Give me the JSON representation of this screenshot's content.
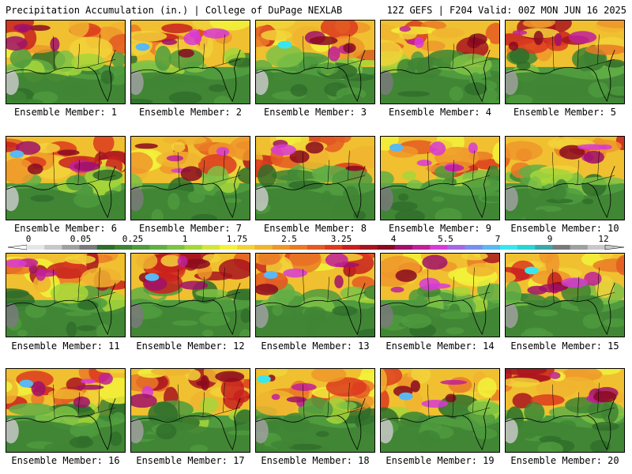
{
  "header": {
    "left": "Precipitation Accumulation (in.) | College of DuPage NEXLAB",
    "right": "12Z GEFS | F204 Valid: 00Z MON JUN 16 2025"
  },
  "members": [
    {
      "label": "Ensemble Member: 1"
    },
    {
      "label": "Ensemble Member: 2"
    },
    {
      "label": "Ensemble Member: 3"
    },
    {
      "label": "Ensemble Member: 4"
    },
    {
      "label": "Ensemble Member: 5"
    },
    {
      "label": "Ensemble Member: 6"
    },
    {
      "label": "Ensemble Member: 7"
    },
    {
      "label": "Ensemble Member: 8"
    },
    {
      "label": "Ensemble Member: 9"
    },
    {
      "label": "Ensemble Member: 10"
    },
    {
      "label": "Ensemble Member: 11"
    },
    {
      "label": "Ensemble Member: 12"
    },
    {
      "label": "Ensemble Member: 13"
    },
    {
      "label": "Ensemble Member: 14"
    },
    {
      "label": "Ensemble Member: 15"
    },
    {
      "label": "Ensemble Member: 16"
    },
    {
      "label": "Ensemble Member: 17"
    },
    {
      "label": "Ensemble Member: 18"
    },
    {
      "label": "Ensemble Member: 19"
    },
    {
      "label": "Ensemble Member: 20"
    }
  ],
  "colorbar": {
    "ticks": [
      "0",
      "0.05",
      "0.25",
      "1",
      "1.75",
      "2.5",
      "3.25",
      "4",
      "5.5",
      "7",
      "9",
      "12"
    ],
    "colors": [
      "#e6e6e6",
      "#c8c8c8",
      "#a0a0a0",
      "#7a7a7a",
      "#2f6d2a",
      "#3f8434",
      "#4f9b3e",
      "#62ae45",
      "#7ec245",
      "#a6d63a",
      "#d2e63a",
      "#f2f23a",
      "#f2d23a",
      "#f0b42f",
      "#ee962a",
      "#ea7a26",
      "#e45a22",
      "#dc3a1e",
      "#c8201e",
      "#a8141e",
      "#8a0a1e",
      "#a0106a",
      "#c0209a",
      "#d83ad6",
      "#a868e6",
      "#7a8ef2",
      "#5ab8f2",
      "#3ae6ee",
      "#2ad4d0",
      "#3aa8a8",
      "#7a7a7a",
      "#a0a0a0",
      "#c8c8c8"
    ]
  }
}
